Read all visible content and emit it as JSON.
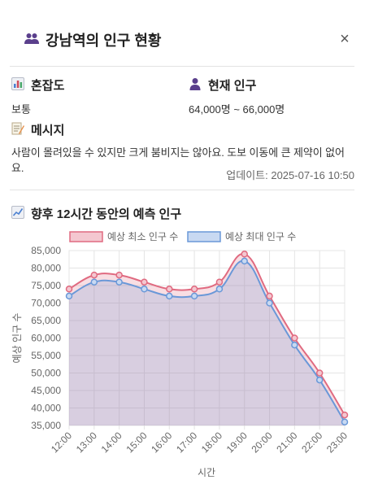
{
  "header": {
    "title": "강남역의 인구 현황",
    "title_icon": "people-icon",
    "close_label": "×"
  },
  "congestion": {
    "label": "혼잡도",
    "icon": "bar-chart-icon",
    "value": "보통"
  },
  "population": {
    "label": "현재 인구",
    "icon": "person-icon",
    "value": "64,000명 ~ 66,000명"
  },
  "message": {
    "label": "메시지",
    "icon": "memo-icon",
    "value": "사람이 몰려있을 수 있지만 크게 붐비지는 않아요. 도보 이동에 큰 제약이 없어요."
  },
  "updated": {
    "text": "업데이트: 2025-07-16 10:50"
  },
  "forecast": {
    "label": "향후 12시간 동안의 예측 인구",
    "icon": "line-chart-icon"
  },
  "colors": {
    "min_series": "#e06a80",
    "max_series": "#6a98d8",
    "fill": "#d8c2d8"
  },
  "chart_data": {
    "type": "line",
    "categories": [
      "12:00",
      "13:00",
      "14:00",
      "15:00",
      "16:00",
      "17:00",
      "18:00",
      "19:00",
      "20:00",
      "21:00",
      "22:00",
      "23:00"
    ],
    "series": [
      {
        "name": "예상 최소 인구 수",
        "values": [
          74000,
          78000,
          78000,
          76000,
          74000,
          74000,
          76000,
          84000,
          72000,
          60000,
          50000,
          38000
        ]
      },
      {
        "name": "예상 최대 인구 수",
        "values": [
          72000,
          76000,
          76000,
          74000,
          72000,
          72000,
          74000,
          82000,
          70000,
          58000,
          48000,
          36000
        ]
      }
    ],
    "xlabel": "시간",
    "ylabel": "예상 인구 수",
    "ylim": [
      35000,
      85000
    ],
    "yticks": [
      "35,000",
      "40,000",
      "45,000",
      "50,000",
      "55,000",
      "60,000",
      "65,000",
      "70,000",
      "75,000",
      "80,000",
      "85,000"
    ],
    "legend_position": "top",
    "grid": true
  }
}
